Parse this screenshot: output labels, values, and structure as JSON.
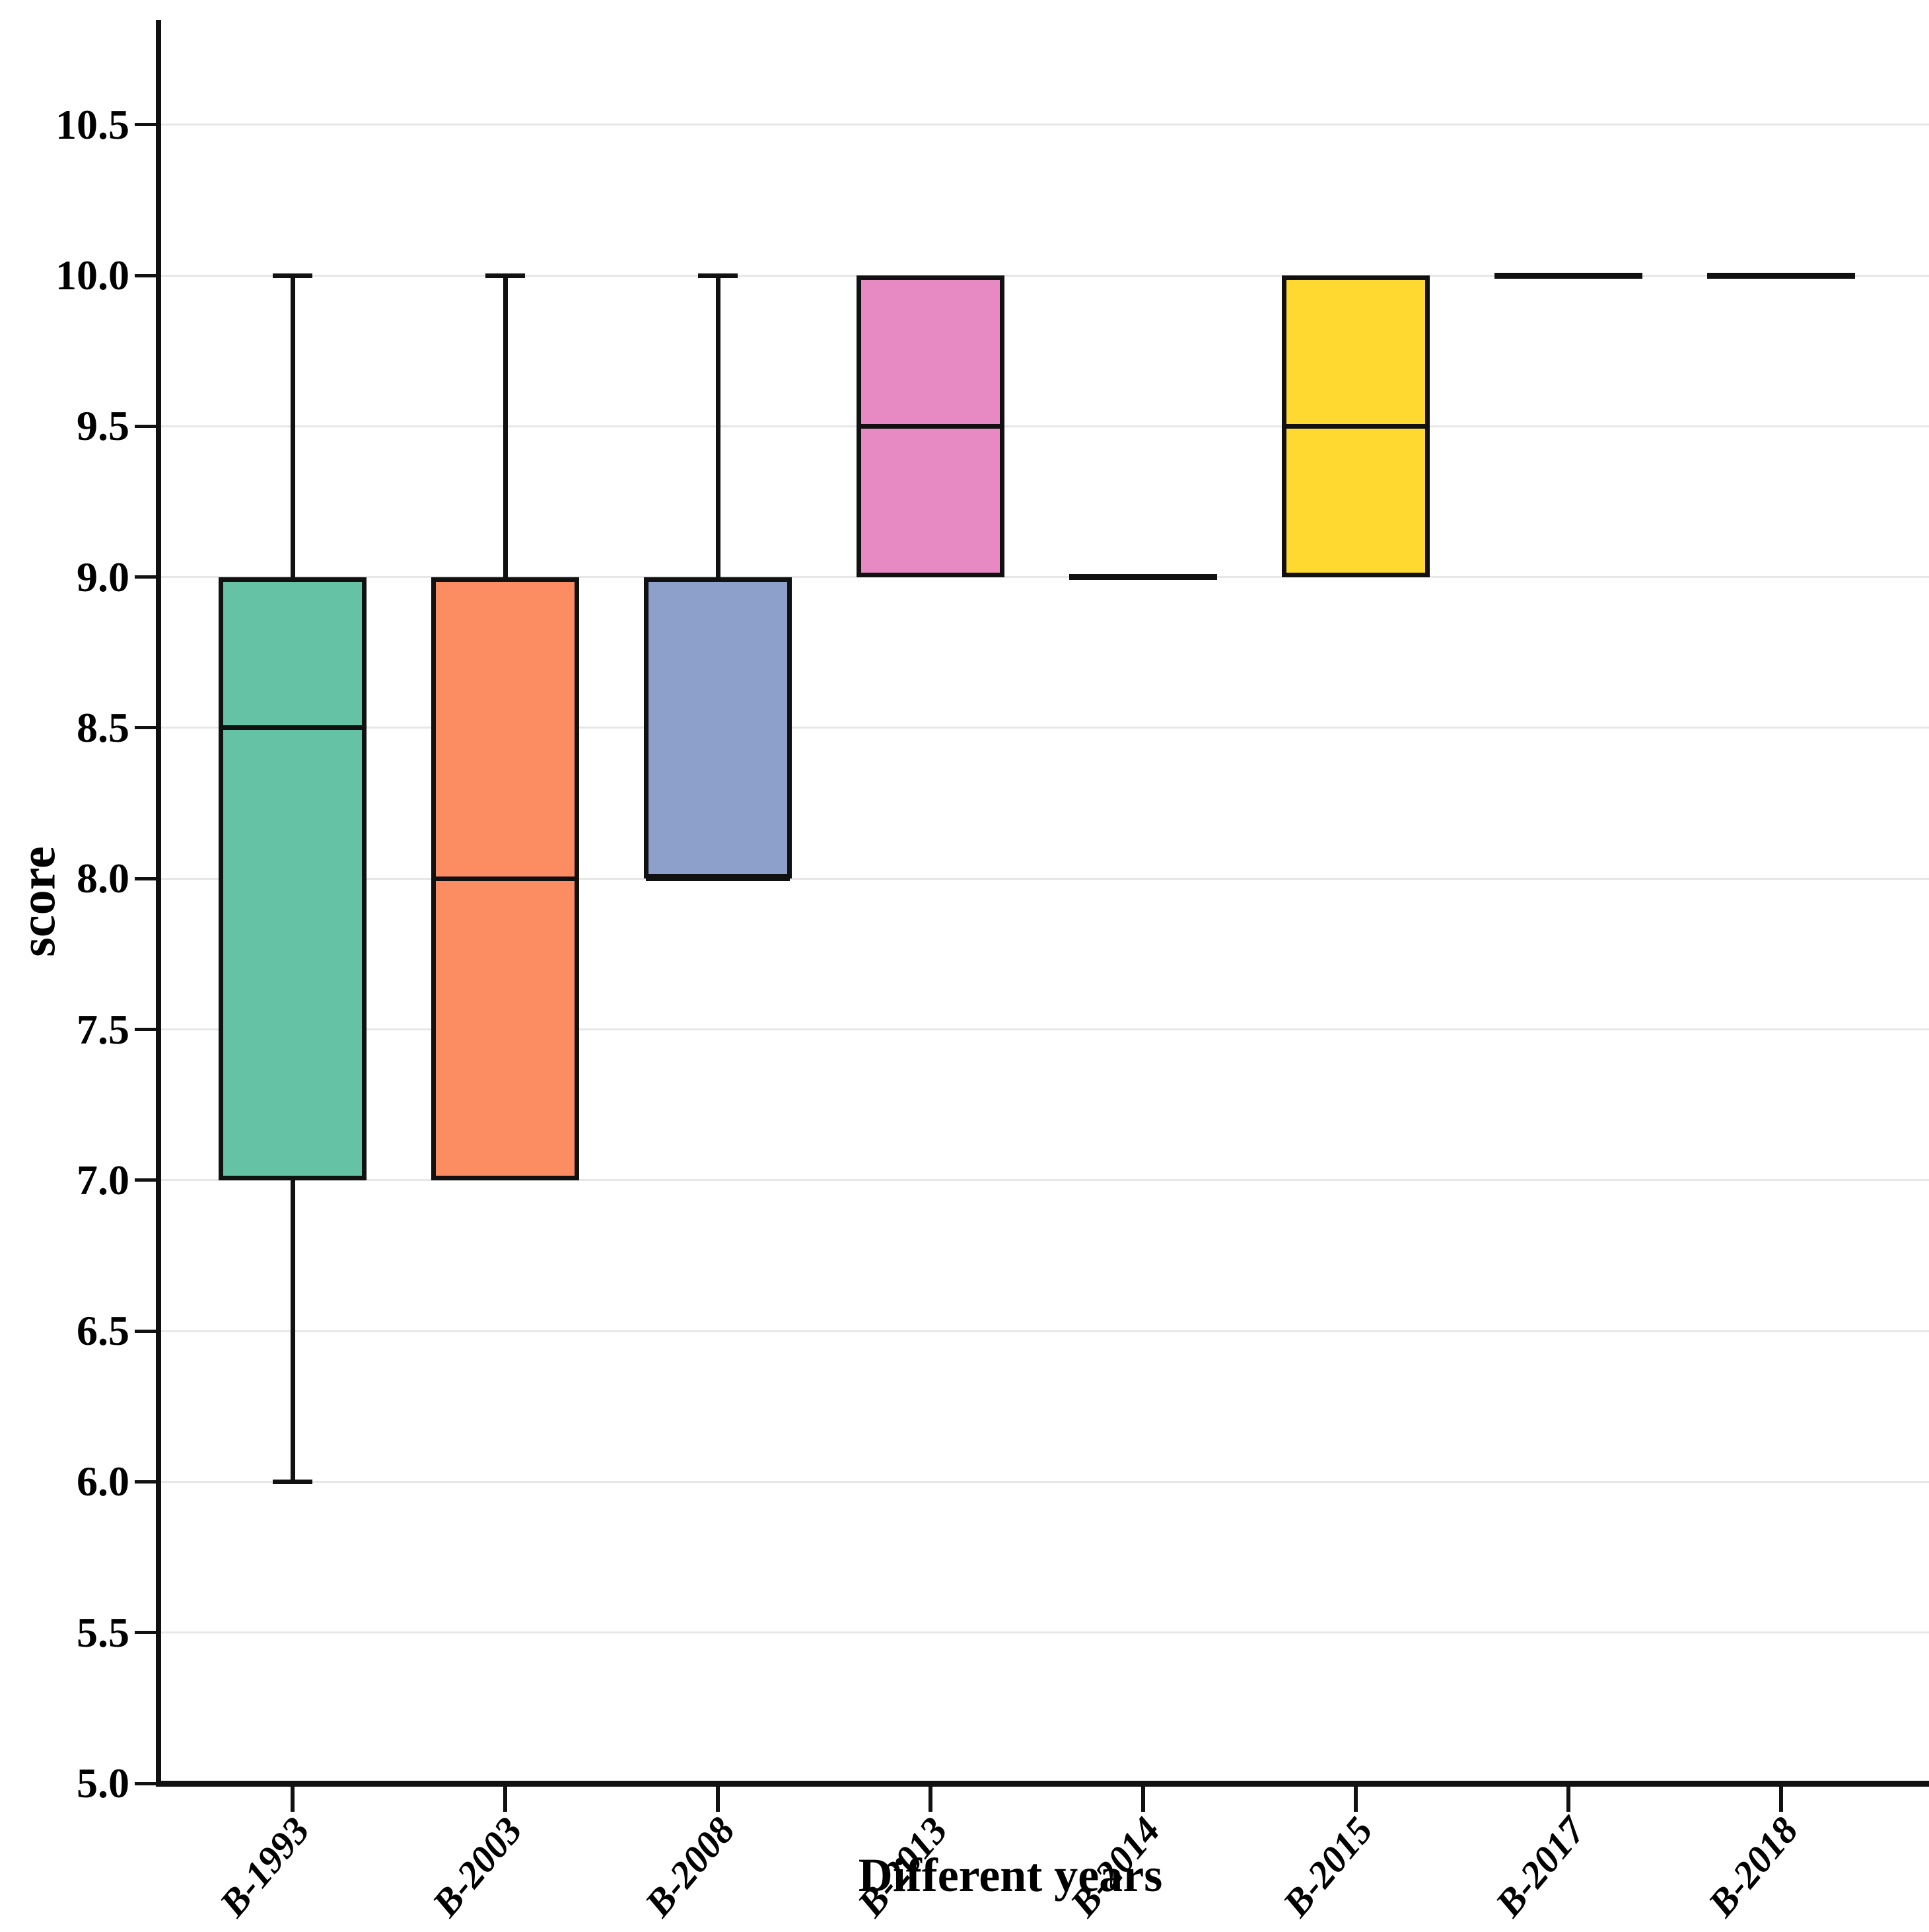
{
  "chart_data": {
    "type": "box",
    "title": "",
    "xlabel": "Different years",
    "ylabel": "score",
    "ylim": [
      5.0,
      10.85
    ],
    "yticks": [
      5.0,
      5.5,
      6.0,
      6.5,
      7.0,
      7.5,
      8.0,
      8.5,
      9.0,
      9.5,
      10.0,
      10.5
    ],
    "ytick_labels": [
      "5.0",
      "5.5",
      "6.0",
      "6.5",
      "7.0",
      "7.5",
      "8.0",
      "8.5",
      "9.0",
      "9.5",
      "10.0",
      "10.5"
    ],
    "grid": "horizontal-light-gray",
    "legend": "none",
    "categories": [
      "B-1993",
      "B-2003",
      "B-2008",
      "B-2013",
      "B-2014",
      "B-2015",
      "B-2017",
      "B-2018"
    ],
    "boxes": [
      {
        "label": "B-1993",
        "color": "#66c2a5",
        "min": 6.0,
        "q1": 7.0,
        "median": 8.5,
        "q3": 9.0,
        "max": 10.0
      },
      {
        "label": "B-2003",
        "color": "#fc8d62",
        "min": 7.0,
        "q1": 7.0,
        "median": 8.0,
        "q3": 9.0,
        "max": 10.0
      },
      {
        "label": "B-2008",
        "color": "#8da0cb",
        "min": 8.0,
        "q1": 8.0,
        "median": 8.0,
        "q3": 9.0,
        "max": 10.0
      },
      {
        "label": "B-2013",
        "color": "#e78ac3",
        "min": 9.0,
        "q1": 9.0,
        "median": 9.5,
        "q3": 10.0,
        "max": 10.0
      },
      {
        "label": "B-2014",
        "color": null,
        "min": 9.0,
        "q1": 9.0,
        "median": 9.0,
        "q3": 9.0,
        "max": 9.0
      },
      {
        "label": "B-2015",
        "color": "#ffd92f",
        "min": 9.0,
        "q1": 9.0,
        "median": 9.5,
        "q3": 10.0,
        "max": 10.0
      },
      {
        "label": "B-2017",
        "color": null,
        "min": 10.0,
        "q1": 10.0,
        "median": 10.0,
        "q3": 10.0,
        "max": 10.0
      },
      {
        "label": "B-2018",
        "color": null,
        "min": 10.0,
        "q1": 10.0,
        "median": 10.0,
        "q3": 10.0,
        "max": 10.0
      }
    ],
    "colors": {
      "box_edge": "#111111",
      "median_line": "#111111",
      "gridline": "#e7e7e7",
      "axis": "#111111",
      "background": "#ffffff"
    }
  }
}
